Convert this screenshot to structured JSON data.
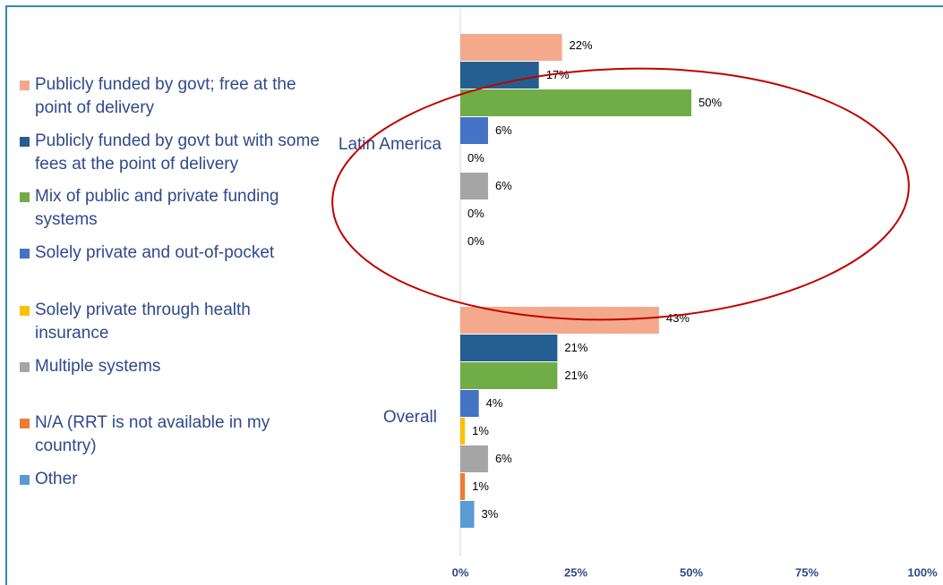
{
  "chart_data": {
    "type": "bar",
    "orientation": "horizontal",
    "categories": [
      "Latin America",
      "Overall"
    ],
    "series": [
      {
        "name": "Publicly funded by govt; free at the point of delivery",
        "color": "#f4a98c",
        "values": [
          22,
          43
        ],
        "value_labels": [
          "22%",
          "43%"
        ]
      },
      {
        "name": "Publicly funded by govt but with some fees at the point of delivery",
        "color": "#255e91",
        "values": [
          17,
          21
        ],
        "value_labels": [
          "17%",
          "21%"
        ]
      },
      {
        "name": "Mix of public and private funding systems",
        "color": "#70ad47",
        "values": [
          50,
          21
        ],
        "value_labels": [
          "50%",
          "21%"
        ]
      },
      {
        "name": "Solely private and out-of-pocket",
        "color": "#4472c4",
        "values": [
          6,
          4
        ],
        "value_labels": [
          "6%",
          "4%"
        ]
      },
      {
        "name": "Solely private through health insurance",
        "color": "#ffc000",
        "values": [
          0,
          1
        ],
        "value_labels": [
          "0%",
          "1%"
        ]
      },
      {
        "name": "Multiple systems",
        "color": "#a5a5a5",
        "values": [
          6,
          6
        ],
        "value_labels": [
          "6%",
          "6%"
        ]
      },
      {
        "name": "N/A (RRT is not available in my country)",
        "color": "#ed7d31",
        "values": [
          0,
          1
        ],
        "value_labels": [
          "0%",
          "1%"
        ]
      },
      {
        "name": "Other",
        "color": "#5b9bd5",
        "values": [
          0,
          3
        ],
        "value_labels": [
          "0%",
          "3%"
        ]
      }
    ],
    "xlim": [
      0,
      100
    ],
    "xticks": [
      {
        "value": 0,
        "label": "0%"
      },
      {
        "value": 25,
        "label": "25%"
      },
      {
        "value": 50,
        "label": "50%"
      },
      {
        "value": 75,
        "label": "75%"
      },
      {
        "value": 100,
        "label": "100%"
      }
    ]
  }
}
